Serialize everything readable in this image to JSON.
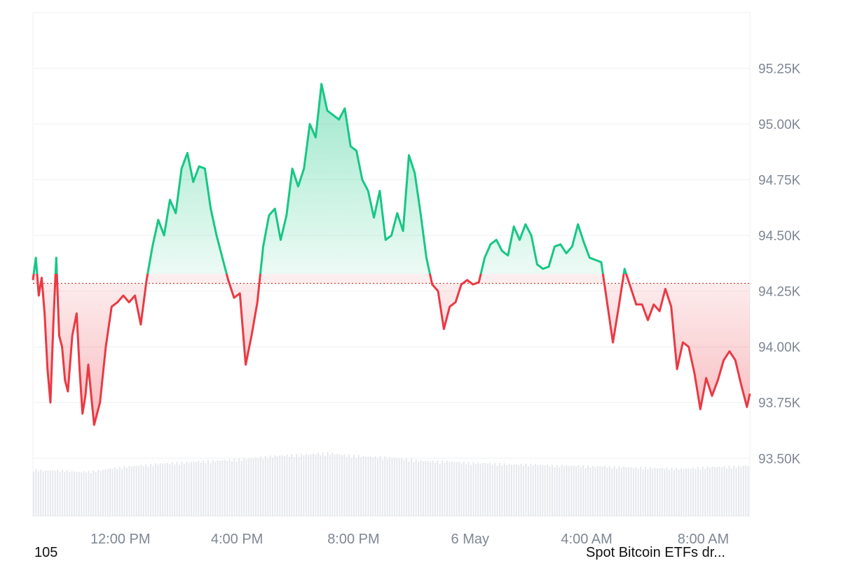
{
  "colors": {
    "up": "#16c784",
    "down": "#ea3943",
    "grid": "#eef0f3",
    "axis_text": "#7e8794",
    "baseline": "#c0392b",
    "volume": "#e6e8ec"
  },
  "footer": {
    "left_text": "105",
    "right_text": "Spot Bitcoin ETFs dr..."
  },
  "chart_data": {
    "type": "area",
    "title": "",
    "xlabel": "",
    "ylabel": "",
    "grid": true,
    "baseline_value": 94285,
    "y_ticks": [
      93500,
      93750,
      94000,
      94250,
      94500,
      94750,
      95000,
      95250
    ],
    "y_tick_labels": [
      "93.50K",
      "93.75K",
      "94.00K",
      "94.25K",
      "94.50K",
      "94.75K",
      "95.00K",
      "95.25K"
    ],
    "ylim": [
      93240,
      95500
    ],
    "x_domain_hours": [
      9.0,
      33.6
    ],
    "x_ticks": [
      12,
      16,
      20,
      24,
      28,
      32
    ],
    "x_tick_labels": [
      "12:00 PM",
      "4:00 PM",
      "8:00 PM",
      "6 May",
      "4:00 AM",
      "8:00 AM"
    ],
    "price_series": {
      "name": "",
      "x_hours": [
        9.0,
        9.1,
        9.2,
        9.3,
        9.4,
        9.5,
        9.6,
        9.7,
        9.8,
        9.9,
        10.0,
        10.1,
        10.2,
        10.35,
        10.5,
        10.6,
        10.7,
        10.8,
        10.9,
        11.0,
        11.1,
        11.3,
        11.5,
        11.7,
        11.9,
        12.1,
        12.3,
        12.5,
        12.7,
        12.9,
        13.1,
        13.3,
        13.5,
        13.7,
        13.9,
        14.1,
        14.3,
        14.5,
        14.7,
        14.9,
        15.1,
        15.3,
        15.5,
        15.7,
        15.9,
        16.1,
        16.3,
        16.5,
        16.7,
        16.9,
        17.1,
        17.3,
        17.5,
        17.7,
        17.9,
        18.1,
        18.3,
        18.5,
        18.7,
        18.9,
        19.1,
        19.3,
        19.5,
        19.7,
        19.9,
        20.1,
        20.3,
        20.5,
        20.7,
        20.9,
        21.1,
        21.3,
        21.5,
        21.7,
        21.9,
        22.1,
        22.3,
        22.5,
        22.7,
        22.9,
        23.1,
        23.3,
        23.5,
        23.7,
        23.9,
        24.1,
        24.3,
        24.5,
        24.7,
        24.9,
        25.1,
        25.3,
        25.5,
        25.7,
        25.9,
        26.1,
        26.3,
        26.5,
        26.7,
        26.9,
        27.1,
        27.3,
        27.5,
        27.7,
        27.9,
        28.1,
        28.3,
        28.5,
        28.7,
        28.9,
        29.1,
        29.3,
        29.5,
        29.7,
        29.9,
        30.1,
        30.3,
        30.5,
        30.7,
        30.9,
        31.1,
        31.3,
        31.5,
        31.7,
        31.9,
        32.1,
        32.3,
        32.5,
        32.7,
        32.9,
        33.1,
        33.3,
        33.5,
        33.6
      ],
      "values": [
        94300,
        94400,
        94230,
        94310,
        94150,
        93900,
        93750,
        94100,
        94400,
        94050,
        94000,
        93850,
        93800,
        94050,
        94150,
        93900,
        93700,
        93780,
        93920,
        93780,
        93650,
        93750,
        94000,
        94180,
        94200,
        94230,
        94200,
        94230,
        94100,
        94300,
        94450,
        94570,
        94500,
        94660,
        94600,
        94800,
        94870,
        94740,
        94810,
        94800,
        94620,
        94500,
        94400,
        94300,
        94220,
        94240,
        93920,
        94050,
        94200,
        94450,
        94590,
        94620,
        94480,
        94590,
        94800,
        94720,
        94800,
        95000,
        94940,
        95180,
        95060,
        95040,
        95020,
        95070,
        94900,
        94880,
        94750,
        94700,
        94580,
        94700,
        94480,
        94500,
        94600,
        94520,
        94860,
        94780,
        94600,
        94400,
        94280,
        94250,
        94080,
        94180,
        94200,
        94280,
        94300,
        94280,
        94290,
        94400,
        94460,
        94480,
        94430,
        94410,
        94540,
        94480,
        94550,
        94500,
        94370,
        94350,
        94360,
        94450,
        94460,
        94420,
        94450,
        94550,
        94470,
        94400,
        94390,
        94380,
        94200,
        94020,
        94180,
        94350,
        94270,
        94190,
        94190,
        94120,
        94190,
        94160,
        94260,
        94180,
        93900,
        94020,
        94000,
        93880,
        93720,
        93860,
        93780,
        93850,
        93940,
        93980,
        93940,
        93830,
        93730,
        93790
      ]
    },
    "volume_series": {
      "name": "",
      "min_level": 0.1,
      "values": [
        0.74,
        0.72,
        0.73,
        0.72,
        0.7,
        0.71,
        0.73,
        0.76,
        0.78,
        0.8,
        0.81,
        0.83,
        0.84,
        0.85,
        0.86,
        0.87,
        0.88,
        0.89,
        0.9,
        0.91,
        0.93,
        0.95,
        0.96,
        0.97,
        0.98,
        0.99,
        1.0,
        0.98,
        0.96,
        0.95,
        0.94,
        0.93,
        0.92,
        0.9,
        0.88,
        0.87,
        0.87,
        0.86,
        0.85,
        0.84,
        0.84,
        0.83,
        0.82,
        0.82,
        0.82,
        0.81,
        0.8,
        0.8,
        0.8,
        0.79,
        0.79,
        0.78,
        0.78,
        0.77,
        0.77,
        0.76,
        0.76,
        0.75,
        0.76,
        0.77,
        0.78,
        0.78,
        0.79,
        0.8
      ]
    }
  }
}
